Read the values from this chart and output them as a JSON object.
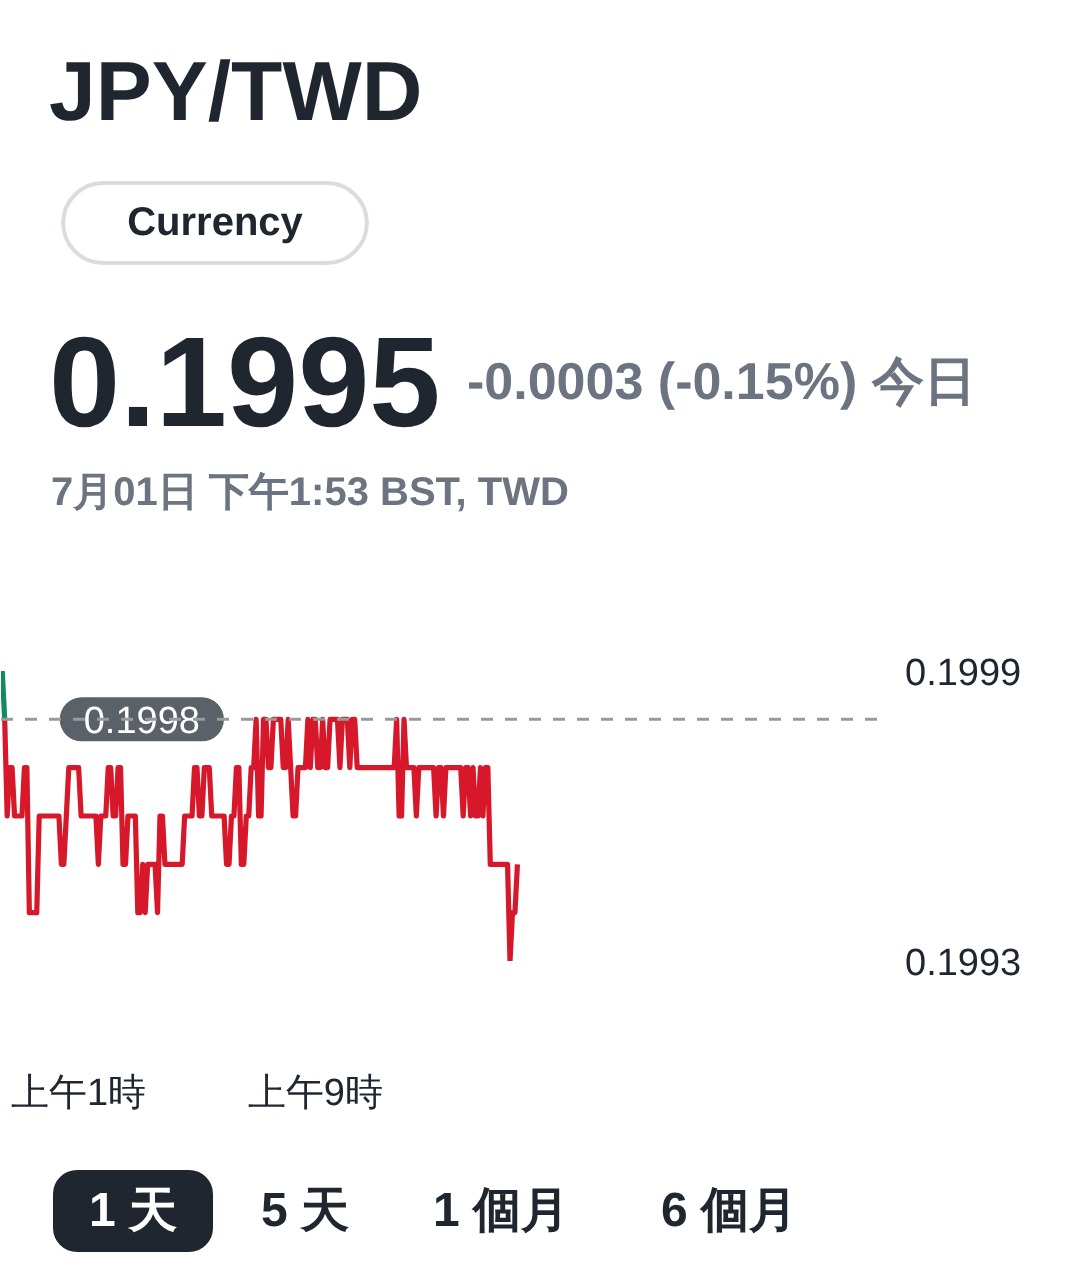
{
  "chart_data": {
    "type": "line",
    "title": "JPY/TWD",
    "subtitle": "Currency",
    "annotations": [
      "0.1995",
      "-0.0003 (-0.15%) 今日",
      "7月01日 下午1:53 BST, TWD",
      "1 天",
      "5 天",
      "1 個月",
      "6 個月"
    ],
    "categories": [
      null,
      null,
      null,
      null,
      null,
      null,
      null,
      null,
      null,
      null,
      null,
      null,
      null,
      null,
      null,
      null,
      null,
      null,
      null,
      null,
      null,
      null,
      null,
      null,
      null,
      null,
      null,
      null,
      null,
      null,
      null,
      "上午1時",
      null,
      null,
      null,
      null,
      null,
      null,
      null,
      null,
      null,
      null,
      null,
      null,
      null,
      null,
      null,
      null,
      null,
      null,
      null,
      null,
      null,
      null,
      null,
      null,
      null,
      null,
      null,
      null,
      null,
      null,
      null,
      null,
      null,
      null,
      null,
      null,
      null,
      null,
      null,
      null,
      null,
      null,
      null,
      null,
      null,
      null,
      null,
      null,
      null,
      null,
      null,
      null,
      null,
      null,
      null,
      null,
      null,
      null,
      null,
      null,
      null,
      null,
      null,
      null,
      null,
      null,
      null,
      null,
      null,
      null,
      null,
      null,
      null,
      null,
      null,
      null,
      null,
      null,
      null,
      null,
      null,
      null,
      null,
      null,
      null,
      null,
      null,
      null,
      null,
      null,
      null,
      null,
      null,
      null,
      null,
      "上午9時",
      null,
      null,
      null,
      null,
      null,
      null,
      null,
      null,
      null,
      null,
      null,
      null,
      null,
      null,
      null,
      null,
      null,
      null,
      null,
      null,
      null,
      null,
      null,
      null,
      null,
      null,
      null,
      null,
      null,
      null,
      null,
      null,
      null,
      null,
      null,
      null,
      null,
      null,
      null,
      null,
      null,
      null,
      null,
      null,
      null,
      null,
      null,
      null,
      null,
      null,
      null,
      null,
      null,
      null,
      null,
      null,
      null,
      null,
      null,
      null,
      null,
      null,
      null,
      null,
      null,
      null,
      null,
      null,
      null,
      null,
      null,
      null,
      null,
      null,
      null,
      null,
      null,
      null,
      null,
      null,
      null,
      null,
      null,
      null,
      null,
      null,
      null,
      null,
      null,
      null,
      null,
      null,
      null,
      null,
      null,
      null,
      null,
      null,
      null,
      null,
      null,
      null,
      null,
      null,
      null,
      null,
      null,
      null,
      null,
      null,
      null,
      null,
      null,
      null,
      null,
      null,
      null,
      null,
      null,
      null,
      null,
      null,
      null,
      null,
      null,
      null,
      null,
      null,
      null,
      null,
      null,
      null,
      null,
      null,
      null,
      null,
      null,
      null,
      null,
      null,
      null,
      null,
      null,
      null,
      null,
      null,
      null,
      null,
      null,
      null,
      null,
      null,
      null,
      null,
      null,
      null,
      null,
      null,
      null,
      null,
      null,
      null,
      null,
      null,
      null,
      null,
      null,
      null,
      null,
      null,
      null,
      null,
      null,
      null,
      null,
      null,
      null,
      null,
      null,
      null,
      null,
      null,
      null,
      null,
      null,
      null,
      null,
      null,
      null,
      null,
      null,
      null,
      null,
      null,
      null,
      null,
      null,
      null,
      null,
      null,
      null,
      null,
      null,
      null,
      null,
      null,
      null,
      null,
      null,
      null,
      null,
      null,
      null,
      null,
      null,
      null,
      null,
      null,
      null,
      null,
      null,
      null,
      null,
      null,
      null,
      null,
      null,
      null,
      null
    ],
    "ylim": [
      0.1993,
      0.1999
    ],
    "yticks": [
      0.1999,
      0.1993
    ],
    "ref_lines": [
      {
        "axis": "y",
        "value": 0.1998,
        "label": "0.1998",
        "color": "#9a9a9a",
        "line_style": "dashed"
      }
    ],
    "series": [
      {
        "color": "#138a60",
        "values": [
          0.1999,
          0.1998,
          null,
          null,
          null,
          null,
          null,
          null,
          null,
          null,
          null,
          null,
          null,
          null,
          null,
          null,
          null,
          null,
          null,
          null,
          null,
          null,
          null,
          null,
          null,
          null,
          null,
          null,
          null,
          null,
          null,
          null,
          null,
          null,
          null,
          null,
          null,
          null,
          null,
          null,
          null,
          null,
          null,
          null,
          null,
          null,
          null,
          null,
          null,
          null,
          null,
          null,
          null,
          null,
          null,
          null,
          null,
          null,
          null,
          null,
          null,
          null,
          null,
          null,
          null,
          null,
          null,
          null,
          null,
          null,
          null,
          null,
          null,
          null,
          null,
          null,
          null,
          null,
          null,
          null,
          null,
          null,
          null,
          null,
          null,
          null,
          null,
          null,
          null,
          null,
          null,
          null,
          null,
          null,
          null,
          null,
          null,
          null,
          null,
          null,
          null,
          null,
          null,
          null,
          null,
          null,
          null,
          null,
          null,
          null,
          null,
          null,
          null,
          null,
          null,
          null,
          null,
          null,
          null,
          null,
          null,
          null,
          null,
          null,
          null,
          null,
          null,
          null,
          null,
          null,
          null,
          null,
          null,
          null,
          null,
          null,
          null,
          null,
          null,
          null,
          null,
          null,
          null,
          null,
          null,
          null,
          null,
          null,
          null,
          null,
          null,
          null,
          null,
          null,
          null,
          null,
          null,
          null,
          null,
          null,
          null,
          null,
          null,
          null,
          null,
          null,
          null,
          null,
          null,
          null,
          null,
          null,
          null,
          null,
          null,
          null,
          null,
          null,
          null,
          null,
          null,
          null,
          null,
          null,
          null,
          null,
          null,
          null,
          null,
          null,
          null,
          null,
          null,
          null,
          null,
          null,
          null,
          null,
          null,
          null,
          null,
          null,
          null,
          null,
          null,
          null,
          null,
          null,
          null,
          null,
          null,
          null,
          null,
          null,
          null,
          null,
          null,
          null,
          null,
          null,
          null,
          null,
          null,
          null,
          null,
          null,
          null,
          null,
          null,
          null,
          null,
          null,
          null,
          null,
          null,
          null,
          null,
          null,
          null,
          null,
          null,
          null,
          null,
          null,
          null,
          null,
          null,
          null,
          null,
          null,
          null,
          null,
          null,
          null,
          null,
          null,
          null,
          null,
          null,
          null,
          null,
          null,
          null,
          null,
          null,
          null,
          null,
          null,
          null,
          null,
          null,
          null,
          null,
          null,
          null,
          null,
          null,
          null,
          null,
          null,
          null,
          null,
          null,
          null,
          null,
          null,
          null,
          null,
          null,
          null,
          null,
          null,
          null,
          null,
          null,
          null,
          null,
          null,
          null,
          null,
          null,
          null,
          null,
          null,
          null,
          null,
          null,
          null,
          null,
          null,
          null,
          null,
          null,
          null,
          null,
          null,
          null,
          null,
          null,
          null,
          null,
          null,
          null,
          null,
          null,
          null,
          null,
          null,
          null,
          null,
          null,
          null,
          null,
          null,
          null,
          null,
          null,
          null,
          null,
          null,
          null,
          null,
          null,
          null,
          null,
          null,
          null,
          null,
          null,
          null,
          null,
          null,
          null,
          null,
          null,
          null,
          null
        ]
      },
      {
        "color": "#d7182a",
        "values": [
          null,
          0.1998,
          0.1996,
          0.1997,
          0.1997,
          0.1996,
          0.1996,
          0.1996,
          0.1996,
          0.1997,
          0.1997,
          0.1994,
          0.1994,
          0.1994,
          0.1994,
          0.1996,
          0.1996,
          0.1996,
          0.1996,
          0.1996,
          0.1996,
          0.1996,
          0.1996,
          0.1996,
          0.1995,
          0.1995,
          0.1996,
          0.1997,
          0.1997,
          0.1997,
          0.1997,
          0.1997,
          0.1996,
          0.1996,
          0.1996,
          0.1996,
          0.1996,
          0.1996,
          0.1996,
          0.1995,
          0.1996,
          0.1996,
          0.1996,
          0.1997,
          0.1997,
          0.1996,
          0.1996,
          0.1997,
          0.1997,
          0.1995,
          0.1995,
          0.1996,
          0.1996,
          0.1996,
          0.1996,
          0.1994,
          0.1994,
          0.1995,
          0.1994,
          0.1995,
          0.1995,
          0.1995,
          0.1995,
          0.1994,
          0.1996,
          0.1996,
          0.1995,
          0.1995,
          0.1995,
          0.1995,
          0.1995,
          0.1995,
          0.1995,
          0.1995,
          0.1996,
          0.1996,
          0.1996,
          0.1996,
          0.1997,
          0.1997,
          0.1996,
          0.1996,
          0.1997,
          0.1997,
          0.1997,
          0.1996,
          0.1996,
          0.1996,
          0.1996,
          0.1996,
          0.1996,
          0.1995,
          0.1995,
          0.1996,
          0.1996,
          0.1997,
          0.1997,
          0.1995,
          0.1995,
          0.1996,
          0.1996,
          0.1997,
          0.1997,
          0.1998,
          0.1996,
          0.1996,
          0.1998,
          0.1998,
          0.1997,
          0.1997,
          0.1998,
          0.1998,
          0.1998,
          0.1998,
          0.1997,
          0.1997,
          0.1998,
          0.1997,
          0.1996,
          0.1996,
          0.1997,
          0.1997,
          0.1997,
          0.1997,
          0.1998,
          0.1997,
          0.1998,
          0.1998,
          0.1997,
          0.1997,
          0.1998,
          0.1997,
          0.1997,
          0.1998,
          0.1998,
          0.1998,
          0.1998,
          0.1997,
          0.1998,
          0.1998,
          0.1998,
          0.1997,
          0.1998,
          0.1998,
          0.1997,
          0.1997,
          0.1997,
          0.1997,
          0.1997,
          0.1997,
          0.1997,
          0.1997,
          0.1997,
          0.1997,
          0.1997,
          0.1997,
          0.1997,
          0.1997,
          0.1997,
          0.1997,
          0.1998,
          0.1996,
          0.1996,
          0.1998,
          0.1997,
          0.1997,
          0.1997,
          0.1997,
          0.1996,
          0.1997,
          0.1997,
          0.1997,
          0.1997,
          0.1997,
          0.1997,
          0.1997,
          0.1996,
          0.1997,
          0.1997,
          0.1996,
          0.1997,
          0.1997,
          0.1997,
          0.1997,
          0.1997,
          0.1997,
          0.1997,
          0.1996,
          0.1997,
          0.1997,
          0.1996,
          0.1997,
          0.1996,
          0.1996,
          0.1997,
          0.1996,
          0.1997,
          0.1997,
          0.1995,
          0.1995,
          0.1995,
          0.1995,
          0.1995,
          0.1995,
          0.1995,
          0.1995,
          0.1993,
          0.1994,
          0.1994,
          0.1995,
          null,
          null,
          null,
          null,
          null,
          null,
          null,
          null,
          null,
          null,
          null,
          null,
          null,
          null,
          null,
          null,
          null,
          null,
          null,
          null,
          null,
          null,
          null,
          null,
          null,
          null,
          null,
          null,
          null,
          null,
          null,
          null,
          null,
          null,
          null,
          null,
          null,
          null,
          null,
          null,
          null,
          null,
          null,
          null,
          null,
          null,
          null,
          null,
          null,
          null,
          null,
          null,
          null,
          null,
          null,
          null,
          null,
          null,
          null,
          null,
          null,
          null,
          null,
          null,
          null,
          null,
          null,
          null,
          null,
          null,
          null,
          null,
          null,
          null,
          null,
          null,
          null,
          null,
          null,
          null,
          null,
          null,
          null,
          null,
          null,
          null,
          null,
          null,
          null,
          null,
          null,
          null,
          null,
          null,
          null,
          null,
          null,
          null,
          null,
          null,
          null,
          null,
          null,
          null,
          null,
          null,
          null,
          null,
          null,
          null,
          null,
          null,
          null,
          null,
          null,
          null,
          null,
          null,
          null,
          null,
          null,
          null,
          null,
          null,
          null,
          null,
          null,
          null,
          null,
          null,
          null,
          null,
          null,
          null,
          null,
          null,
          null,
          null,
          null,
          null,
          null,
          null,
          null,
          null,
          null,
          null,
          null
        ]
      }
    ]
  }
}
